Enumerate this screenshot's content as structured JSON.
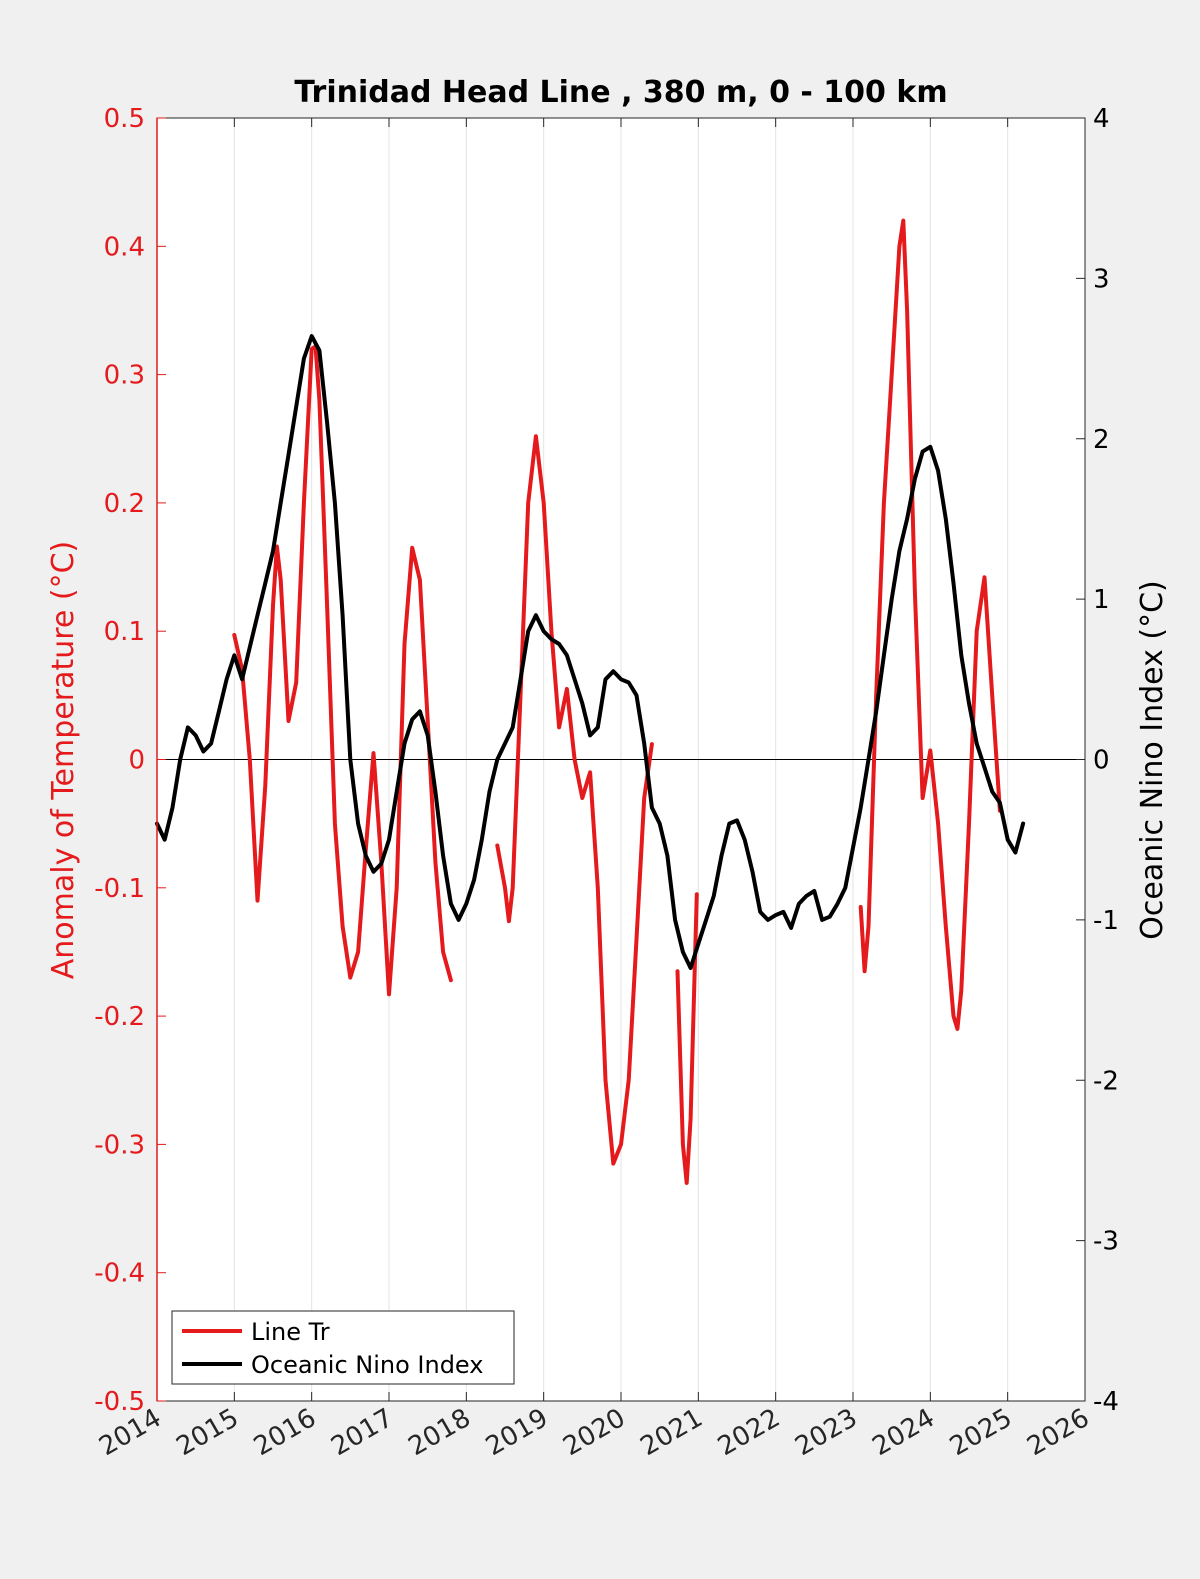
{
  "chart_data": {
    "type": "line",
    "title": "Trinidad Head Line , 380 m, 0 - 100 km",
    "xlabel": "",
    "ylabel_left": "Anomaly of Temperature (°C)",
    "ylabel_right": "Oceanic Nino Index (°C)",
    "xlim": [
      2014,
      2026
    ],
    "ylim_left": [
      -0.5,
      0.5
    ],
    "ylim_right": [
      -4,
      4
    ],
    "x_ticks": [
      "2014",
      "2015",
      "2016",
      "2017",
      "2018",
      "2019",
      "2020",
      "2021",
      "2022",
      "2023",
      "2024",
      "2025",
      "2026"
    ],
    "y_ticks_left": [
      "-0.5",
      "-0.4",
      "-0.3",
      "-0.2",
      "-0.1",
      "0",
      "0.1",
      "0.2",
      "0.3",
      "0.4",
      "0.5"
    ],
    "y_ticks_right": [
      "-4",
      "-3",
      "-2",
      "-1",
      "0",
      "1",
      "2",
      "3",
      "4"
    ],
    "grid": "vertical",
    "legend_position": "bottom-left",
    "colors": {
      "line_tr": "#e41a1c",
      "oni": "#000000",
      "left_axis": "#e41a1c",
      "right_axis": "#000000"
    },
    "series": [
      {
        "name": "Line Tr",
        "axis": "left",
        "segments": [
          [
            [
              2015.0,
              0.097
            ],
            [
              2015.1,
              0.07
            ],
            [
              2015.2,
              0.0
            ],
            [
              2015.3,
              -0.11
            ],
            [
              2015.4,
              -0.02
            ],
            [
              2015.5,
              0.12
            ],
            [
              2015.55,
              0.166
            ],
            [
              2015.6,
              0.14
            ],
            [
              2015.7,
              0.03
            ],
            [
              2015.8,
              0.06
            ],
            [
              2015.9,
              0.2
            ],
            [
              2016.0,
              0.32
            ],
            [
              2016.05,
              0.322
            ],
            [
              2016.1,
              0.28
            ],
            [
              2016.2,
              0.12
            ],
            [
              2016.3,
              -0.05
            ],
            [
              2016.4,
              -0.13
            ],
            [
              2016.5,
              -0.17
            ],
            [
              2016.6,
              -0.15
            ],
            [
              2016.7,
              -0.07
            ],
            [
              2016.8,
              0.005
            ],
            [
              2016.9,
              -0.08
            ],
            [
              2017.0,
              -0.183
            ],
            [
              2017.1,
              -0.1
            ],
            [
              2017.2,
              0.09
            ],
            [
              2017.3,
              0.165
            ],
            [
              2017.4,
              0.14
            ],
            [
              2017.5,
              0.03
            ],
            [
              2017.6,
              -0.08
            ],
            [
              2017.7,
              -0.15
            ],
            [
              2017.8,
              -0.172
            ]
          ],
          [
            [
              2018.4,
              -0.067
            ],
            [
              2018.5,
              -0.1
            ],
            [
              2018.55,
              -0.126
            ],
            [
              2018.6,
              -0.1
            ],
            [
              2018.7,
              0.05
            ],
            [
              2018.8,
              0.2
            ],
            [
              2018.9,
              0.252
            ],
            [
              2019.0,
              0.2
            ],
            [
              2019.1,
              0.1
            ],
            [
              2019.2,
              0.025
            ],
            [
              2019.3,
              0.055
            ],
            [
              2019.4,
              0.0
            ],
            [
              2019.5,
              -0.03
            ],
            [
              2019.6,
              -0.01
            ],
            [
              2019.7,
              -0.1
            ],
            [
              2019.8,
              -0.25
            ],
            [
              2019.9,
              -0.315
            ],
            [
              2020.0,
              -0.3
            ],
            [
              2020.1,
              -0.25
            ],
            [
              2020.2,
              -0.14
            ],
            [
              2020.3,
              -0.03
            ],
            [
              2020.4,
              0.012
            ]
          ],
          [
            [
              2020.73,
              -0.165
            ],
            [
              2020.8,
              -0.3
            ],
            [
              2020.85,
              -0.33
            ],
            [
              2020.9,
              -0.28
            ],
            [
              2020.98,
              -0.105
            ]
          ],
          [
            [
              2023.1,
              -0.115
            ],
            [
              2023.15,
              -0.165
            ],
            [
              2023.2,
              -0.13
            ],
            [
              2023.3,
              0.05
            ],
            [
              2023.4,
              0.2
            ],
            [
              2023.5,
              0.3
            ],
            [
              2023.6,
              0.4
            ],
            [
              2023.65,
              0.42
            ],
            [
              2023.7,
              0.35
            ],
            [
              2023.8,
              0.13
            ],
            [
              2023.9,
              -0.03
            ],
            [
              2024.0,
              0.007
            ],
            [
              2024.1,
              -0.05
            ],
            [
              2024.2,
              -0.13
            ],
            [
              2024.3,
              -0.2
            ],
            [
              2024.35,
              -0.21
            ],
            [
              2024.4,
              -0.18
            ],
            [
              2024.5,
              -0.05
            ],
            [
              2024.6,
              0.1
            ],
            [
              2024.7,
              0.142
            ],
            [
              2024.8,
              0.05
            ],
            [
              2024.9,
              -0.04
            ]
          ]
        ]
      },
      {
        "name": "Oceanic Nino Index",
        "axis": "right",
        "segments": [
          [
            [
              2014.0,
              -0.4
            ],
            [
              2014.1,
              -0.5
            ],
            [
              2014.2,
              -0.3
            ],
            [
              2014.3,
              0.0
            ],
            [
              2014.4,
              0.2
            ],
            [
              2014.5,
              0.15
            ],
            [
              2014.6,
              0.05
            ],
            [
              2014.7,
              0.1
            ],
            [
              2014.8,
              0.3
            ],
            [
              2014.9,
              0.5
            ],
            [
              2015.0,
              0.65
            ],
            [
              2015.1,
              0.5
            ],
            [
              2015.2,
              0.7
            ],
            [
              2015.3,
              0.9
            ],
            [
              2015.4,
              1.1
            ],
            [
              2015.5,
              1.3
            ],
            [
              2015.6,
              1.6
            ],
            [
              2015.7,
              1.9
            ],
            [
              2015.8,
              2.2
            ],
            [
              2015.9,
              2.5
            ],
            [
              2016.0,
              2.64
            ],
            [
              2016.1,
              2.55
            ],
            [
              2016.2,
              2.1
            ],
            [
              2016.3,
              1.6
            ],
            [
              2016.4,
              0.9
            ],
            [
              2016.5,
              0.0
            ],
            [
              2016.6,
              -0.4
            ],
            [
              2016.7,
              -0.6
            ],
            [
              2016.8,
              -0.7
            ],
            [
              2016.9,
              -0.65
            ],
            [
              2017.0,
              -0.5
            ],
            [
              2017.1,
              -0.2
            ],
            [
              2017.2,
              0.1
            ],
            [
              2017.3,
              0.25
            ],
            [
              2017.4,
              0.3
            ],
            [
              2017.5,
              0.15
            ],
            [
              2017.6,
              -0.2
            ],
            [
              2017.7,
              -0.6
            ],
            [
              2017.8,
              -0.9
            ],
            [
              2017.9,
              -1.0
            ],
            [
              2018.0,
              -0.9
            ],
            [
              2018.1,
              -0.75
            ],
            [
              2018.2,
              -0.5
            ],
            [
              2018.3,
              -0.2
            ],
            [
              2018.4,
              0.0
            ],
            [
              2018.5,
              0.1
            ],
            [
              2018.6,
              0.2
            ],
            [
              2018.7,
              0.5
            ],
            [
              2018.8,
              0.8
            ],
            [
              2018.9,
              0.9
            ],
            [
              2019.0,
              0.8
            ],
            [
              2019.1,
              0.75
            ],
            [
              2019.2,
              0.72
            ],
            [
              2019.3,
              0.65
            ],
            [
              2019.4,
              0.5
            ],
            [
              2019.5,
              0.35
            ],
            [
              2019.6,
              0.15
            ],
            [
              2019.7,
              0.2
            ],
            [
              2019.8,
              0.5
            ],
            [
              2019.9,
              0.55
            ],
            [
              2020.0,
              0.5
            ],
            [
              2020.1,
              0.48
            ],
            [
              2020.2,
              0.4
            ],
            [
              2020.3,
              0.1
            ],
            [
              2020.4,
              -0.3
            ],
            [
              2020.5,
              -0.4
            ],
            [
              2020.6,
              -0.6
            ],
            [
              2020.7,
              -1.0
            ],
            [
              2020.8,
              -1.2
            ],
            [
              2020.9,
              -1.3
            ],
            [
              2021.0,
              -1.15
            ],
            [
              2021.1,
              -1.0
            ],
            [
              2021.2,
              -0.85
            ],
            [
              2021.3,
              -0.6
            ],
            [
              2021.4,
              -0.4
            ],
            [
              2021.5,
              -0.38
            ],
            [
              2021.6,
              -0.5
            ],
            [
              2021.7,
              -0.7
            ],
            [
              2021.8,
              -0.95
            ],
            [
              2021.9,
              -1.0
            ],
            [
              2022.0,
              -0.97
            ],
            [
              2022.1,
              -0.95
            ],
            [
              2022.2,
              -1.05
            ],
            [
              2022.3,
              -0.9
            ],
            [
              2022.4,
              -0.85
            ],
            [
              2022.5,
              -0.82
            ],
            [
              2022.6,
              -1.0
            ],
            [
              2022.7,
              -0.98
            ],
            [
              2022.8,
              -0.9
            ],
            [
              2022.9,
              -0.8
            ],
            [
              2023.0,
              -0.55
            ],
            [
              2023.1,
              -0.3
            ],
            [
              2023.2,
              0.0
            ],
            [
              2023.3,
              0.3
            ],
            [
              2023.4,
              0.65
            ],
            [
              2023.5,
              1.0
            ],
            [
              2023.6,
              1.3
            ],
            [
              2023.7,
              1.5
            ],
            [
              2023.8,
              1.75
            ],
            [
              2023.9,
              1.92
            ],
            [
              2024.0,
              1.95
            ],
            [
              2024.1,
              1.8
            ],
            [
              2024.2,
              1.5
            ],
            [
              2024.3,
              1.1
            ],
            [
              2024.4,
              0.65
            ],
            [
              2024.5,
              0.35
            ],
            [
              2024.6,
              0.1
            ],
            [
              2024.7,
              -0.05
            ],
            [
              2024.8,
              -0.2
            ],
            [
              2024.9,
              -0.27
            ],
            [
              2025.0,
              -0.5
            ],
            [
              2025.1,
              -0.58
            ],
            [
              2025.2,
              -0.4
            ]
          ]
        ]
      }
    ]
  }
}
